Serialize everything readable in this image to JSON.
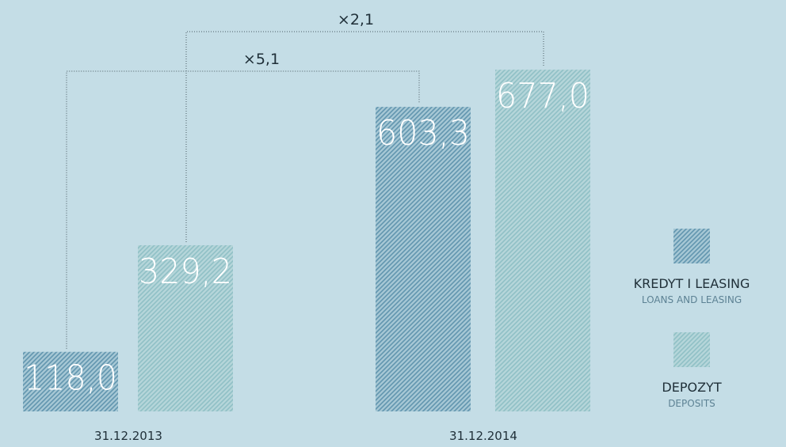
{
  "chart_data": {
    "type": "bar",
    "categories": [
      "31.12.2013",
      "31.12.2014"
    ],
    "series": [
      {
        "name": "KREDYT I LEASING",
        "name_en": "LOANS AND LEASING",
        "color": "#5e93ad",
        "background": "#a8c9d6",
        "values": [
          118.0,
          603.3
        ],
        "value_labels": [
          "118,0",
          "603,3"
        ]
      },
      {
        "name": "DEPOZYT",
        "name_en": "DEPOSITS",
        "color": "#8ebfc5",
        "background": "#b6d6da",
        "values": [
          329.2,
          677.0
        ],
        "value_labels": [
          "329,2",
          "677,0"
        ]
      }
    ],
    "annotations": [
      "×5,1",
      "×2,1"
    ]
  }
}
